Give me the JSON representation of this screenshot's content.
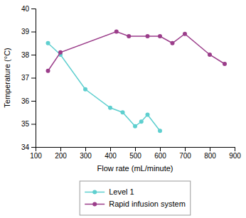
{
  "chart_data": {
    "type": "line",
    "xlabel": "Flow rate (mL/minute)",
    "ylabel": "Temperature (°C)",
    "series": [
      {
        "name": "Level 1",
        "color": "#5ecfcf",
        "x": [
          150,
          200,
          300,
          400,
          450,
          500,
          525,
          550,
          600
        ],
        "values": [
          38.5,
          38.0,
          36.5,
          35.7,
          35.5,
          34.9,
          35.1,
          35.4,
          34.7
        ]
      },
      {
        "name": "Rapid infusion system",
        "color": "#9b3d8a",
        "x": [
          150,
          200,
          425,
          475,
          550,
          600,
          650,
          700,
          800,
          860
        ],
        "values": [
          37.3,
          38.1,
          39.0,
          38.8,
          38.8,
          38.8,
          38.5,
          38.9,
          38.0,
          37.6
        ]
      }
    ],
    "xlim": [
      100,
      900
    ],
    "ylim": [
      34,
      40
    ],
    "xticks": [
      100,
      200,
      300,
      400,
      500,
      600,
      700,
      800,
      900
    ],
    "yticks": [
      34,
      35,
      36,
      37,
      38,
      39,
      40
    ],
    "marker": "circle",
    "legend": "bottom",
    "grid": false
  }
}
